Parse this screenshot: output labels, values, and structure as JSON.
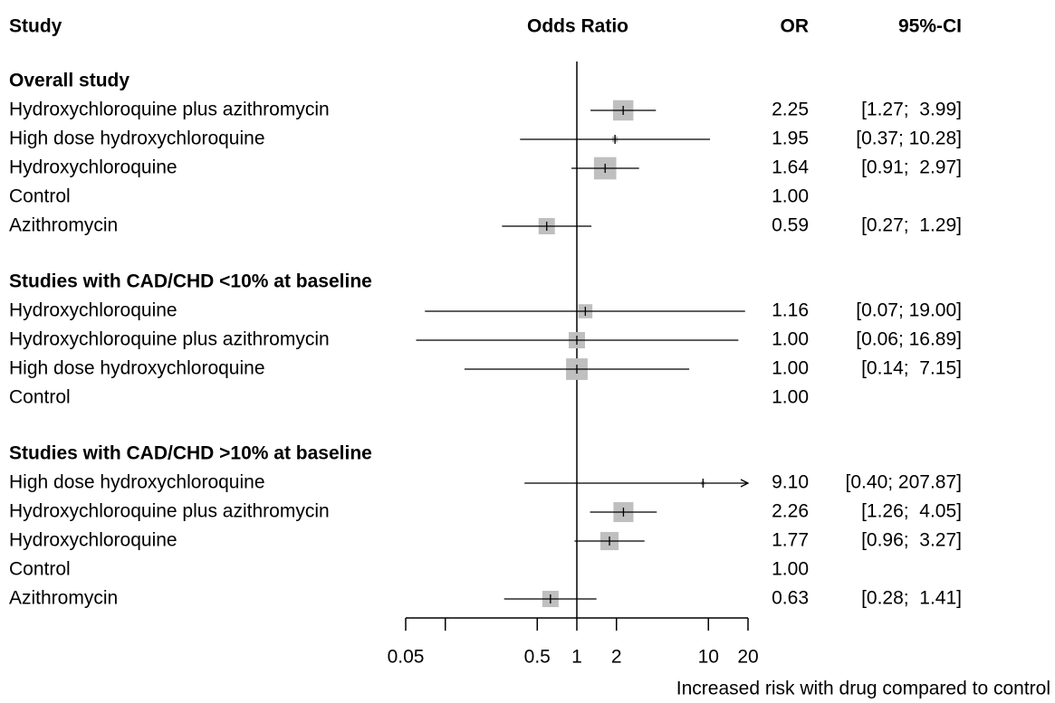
{
  "chart_data": {
    "type": "forest",
    "headers": {
      "study": "Study",
      "plot": "Odds Ratio",
      "or": "OR",
      "ci": "95%-CI"
    },
    "xlabel": "Increased risk with drug compared to control",
    "log_scale": true,
    "xlim": [
      0.05,
      20
    ],
    "xticks": [
      0.05,
      {
        "value": 0.1,
        "label": null
      },
      0.5,
      1,
      2,
      10,
      20
    ],
    "ref_line": 1,
    "box_color": "#bfbfbf",
    "line_color": "#000000",
    "groups": [
      {
        "title": "Overall study",
        "rows": [
          {
            "name": "Hydroxychloroquine plus azithromycin",
            "or": 2.25,
            "or_label": "2.25",
            "ci": [
              1.27,
              3.99
            ],
            "ci_label": "[1.27;  3.99]",
            "weight": 25
          },
          {
            "name": "High dose hydroxychloroquine",
            "or": 1.95,
            "or_label": "1.95",
            "ci": [
              0.37,
              10.28
            ],
            "ci_label": "[0.37; 10.28]",
            "weight": 2
          },
          {
            "name": "Hydroxychloroquine",
            "or": 1.64,
            "or_label": "1.64",
            "ci": [
              0.91,
              2.97
            ],
            "ci_label": "[0.91;  2.97]",
            "weight": 30
          },
          {
            "name": "Control",
            "or": 1,
            "or_label": "1.00"
          },
          {
            "name": "Azithromycin",
            "or": 0.59,
            "or_label": "0.59",
            "ci": [
              0.27,
              1.29
            ],
            "ci_label": "[0.27;  1.29]",
            "weight": 16
          }
        ]
      },
      {
        "title": "Studies with CAD/CHD <10% at baseline",
        "rows": [
          {
            "name": "Hydroxychloroquine",
            "or": 1.16,
            "or_label": "1.16",
            "ci": [
              0.07,
              19.0
            ],
            "ci_label": "[0.07; 19.00]",
            "weight": 12
          },
          {
            "name": "Hydroxychloroquine plus azithromycin",
            "or": 1,
            "or_label": "1.00",
            "ci": [
              0.06,
              16.89
            ],
            "ci_label": "[0.06; 16.89]",
            "weight": 16
          },
          {
            "name": "High dose hydroxychloroquine",
            "or": 1,
            "or_label": "1.00",
            "ci": [
              0.14,
              7.15
            ],
            "ci_label": "[0.14;  7.15]",
            "weight": 28
          },
          {
            "name": "Control",
            "or": 1,
            "or_label": "1.00"
          }
        ]
      },
      {
        "title": "Studies with CAD/CHD >10% at baseline",
        "rows": [
          {
            "name": "High dose hydroxychloroquine",
            "or": 9.1,
            "or_label": "9.10",
            "ci": [
              0.4,
              207.87
            ],
            "ci_label": "[0.40; 207.87]",
            "weight": 1
          },
          {
            "name": "Hydroxychloroquine plus azithromycin",
            "or": 2.26,
            "or_label": "2.26",
            "ci": [
              1.26,
              4.05
            ],
            "ci_label": "[1.26;  4.05]",
            "weight": 24
          },
          {
            "name": "Hydroxychloroquine",
            "or": 1.77,
            "or_label": "1.77",
            "ci": [
              0.96,
              3.27
            ],
            "ci_label": "[0.96;  3.27]",
            "weight": 20
          },
          {
            "name": "Control",
            "or": 1,
            "or_label": "1.00"
          },
          {
            "name": "Azithromycin",
            "or": 0.63,
            "or_label": "0.63",
            "ci": [
              0.28,
              1.41
            ],
            "ci_label": "[0.28;  1.41]",
            "weight": 16
          }
        ]
      }
    ]
  }
}
